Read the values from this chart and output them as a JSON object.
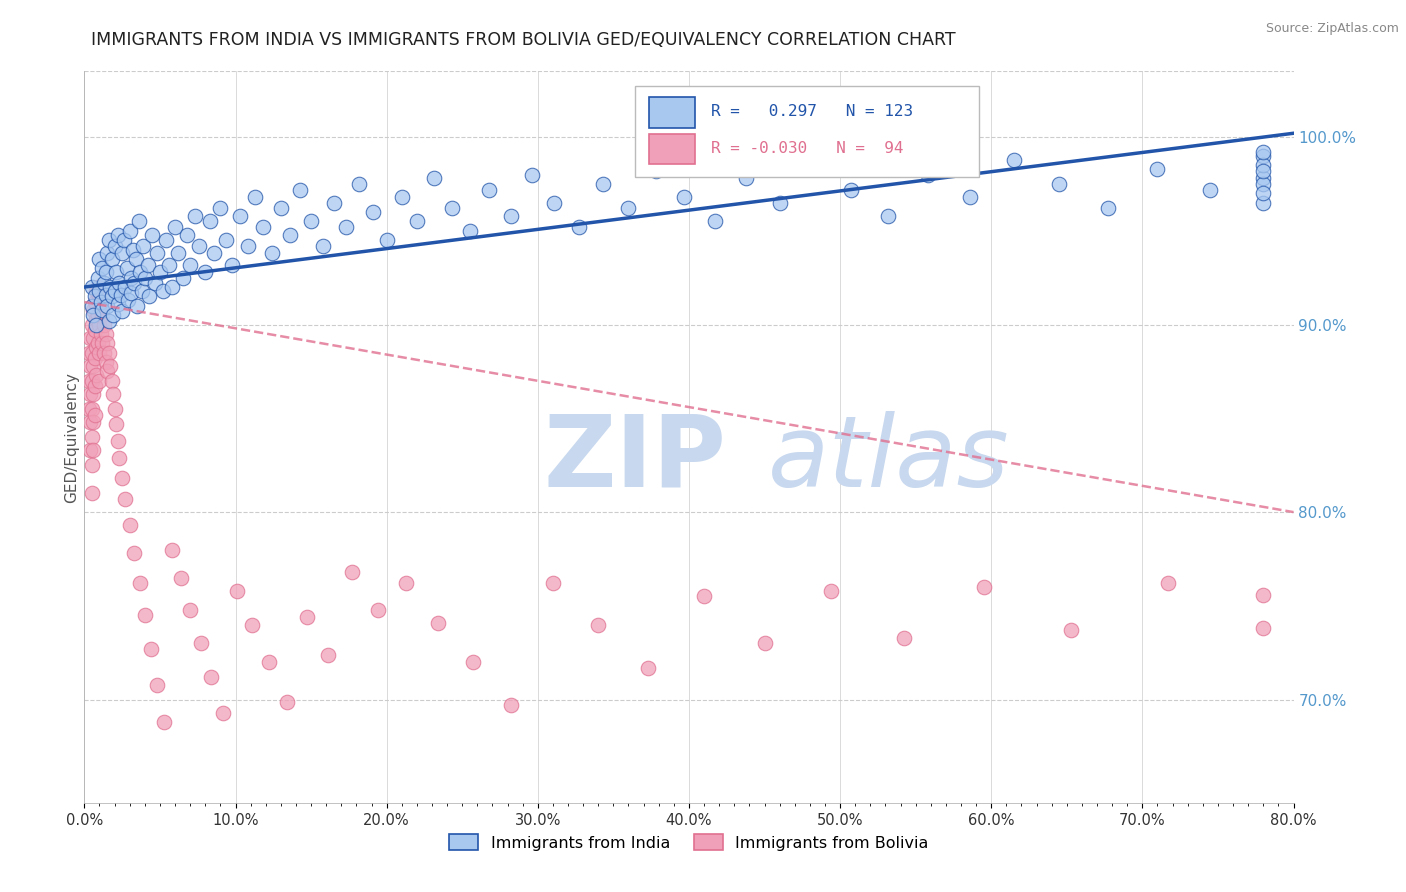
{
  "title": "IMMIGRANTS FROM INDIA VS IMMIGRANTS FROM BOLIVIA GED/EQUIVALENCY CORRELATION CHART",
  "source": "Source: ZipAtlas.com",
  "ylabel": "GED/Equivalency",
  "legend_label_india": "Immigrants from India",
  "legend_label_bolivia": "Immigrants from Bolivia",
  "R_india": 0.297,
  "N_india": 123,
  "R_bolivia": -0.03,
  "N_bolivia": 94,
  "xlim": [
    0.0,
    0.8
  ],
  "ylim": [
    0.645,
    1.035
  ],
  "xtick_labels": [
    "0.0%",
    "",
    "",
    "",
    "",
    "",
    "",
    "",
    "",
    "",
    "10.0%",
    "",
    "",
    "",
    "",
    "",
    "",
    "",
    "",
    "",
    "20.0%",
    "",
    "",
    "",
    "",
    "",
    "",
    "",
    "",
    "",
    "30.0%",
    "",
    "",
    "",
    "",
    "",
    "",
    "",
    "",
    "",
    "40.0%",
    "",
    "",
    "",
    "",
    "",
    "",
    "",
    "",
    "",
    "50.0%",
    "",
    "",
    "",
    "",
    "",
    "",
    "",
    "",
    "",
    "60.0%",
    "",
    "",
    "",
    "",
    "",
    "",
    "",
    "",
    "",
    "70.0%",
    "",
    "",
    "",
    "",
    "",
    "",
    "",
    "",
    "",
    "80.0%"
  ],
  "xtick_values": [
    0.0,
    0.01,
    0.02,
    0.03,
    0.04,
    0.05,
    0.06,
    0.07,
    0.08,
    0.09,
    0.1,
    0.11,
    0.12,
    0.13,
    0.14,
    0.15,
    0.16,
    0.17,
    0.18,
    0.19,
    0.2,
    0.21,
    0.22,
    0.23,
    0.24,
    0.25,
    0.26,
    0.27,
    0.28,
    0.29,
    0.3,
    0.31,
    0.32,
    0.33,
    0.34,
    0.35,
    0.36,
    0.37,
    0.38,
    0.39,
    0.4,
    0.41,
    0.42,
    0.43,
    0.44,
    0.45,
    0.46,
    0.47,
    0.48,
    0.49,
    0.5,
    0.51,
    0.52,
    0.53,
    0.54,
    0.55,
    0.56,
    0.57,
    0.58,
    0.59,
    0.6,
    0.61,
    0.62,
    0.63,
    0.64,
    0.65,
    0.66,
    0.67,
    0.68,
    0.69,
    0.7,
    0.71,
    0.72,
    0.73,
    0.74,
    0.75,
    0.76,
    0.77,
    0.78,
    0.79,
    0.8
  ],
  "ytick_labels": [
    "70.0%",
    "80.0%",
    "90.0%",
    "100.0%"
  ],
  "ytick_values": [
    0.7,
    0.8,
    0.9,
    1.0
  ],
  "color_india": "#a8c8f0",
  "color_bolivia": "#f0a0b8",
  "trendline_india_color": "#2255aa",
  "trendline_bolivia_color": "#e07090",
  "watermark_zip": "ZIP",
  "watermark_atlas": "atlas",
  "watermark_color": "#c8d8ee",
  "india_x": [
    0.005,
    0.005,
    0.006,
    0.007,
    0.008,
    0.009,
    0.01,
    0.01,
    0.011,
    0.012,
    0.012,
    0.013,
    0.014,
    0.014,
    0.015,
    0.015,
    0.016,
    0.016,
    0.017,
    0.018,
    0.018,
    0.019,
    0.02,
    0.02,
    0.021,
    0.022,
    0.022,
    0.023,
    0.024,
    0.025,
    0.025,
    0.026,
    0.027,
    0.028,
    0.029,
    0.03,
    0.031,
    0.031,
    0.032,
    0.033,
    0.034,
    0.035,
    0.036,
    0.037,
    0.038,
    0.039,
    0.04,
    0.042,
    0.043,
    0.045,
    0.047,
    0.048,
    0.05,
    0.052,
    0.054,
    0.056,
    0.058,
    0.06,
    0.062,
    0.065,
    0.068,
    0.07,
    0.073,
    0.076,
    0.08,
    0.083,
    0.086,
    0.09,
    0.094,
    0.098,
    0.103,
    0.108,
    0.113,
    0.118,
    0.124,
    0.13,
    0.136,
    0.143,
    0.15,
    0.158,
    0.165,
    0.173,
    0.182,
    0.191,
    0.2,
    0.21,
    0.22,
    0.231,
    0.243,
    0.255,
    0.268,
    0.282,
    0.296,
    0.311,
    0.327,
    0.343,
    0.36,
    0.378,
    0.397,
    0.417,
    0.438,
    0.46,
    0.483,
    0.507,
    0.532,
    0.558,
    0.586,
    0.615,
    0.645,
    0.677,
    0.71,
    0.745,
    0.78,
    0.78,
    0.78,
    0.78,
    0.78,
    0.78,
    0.78,
    0.78
  ],
  "india_y": [
    0.92,
    0.91,
    0.905,
    0.915,
    0.9,
    0.925,
    0.935,
    0.918,
    0.912,
    0.93,
    0.908,
    0.922,
    0.916,
    0.928,
    0.91,
    0.938,
    0.902,
    0.945,
    0.92,
    0.915,
    0.935,
    0.905,
    0.942,
    0.918,
    0.928,
    0.911,
    0.948,
    0.922,
    0.916,
    0.938,
    0.907,
    0.945,
    0.92,
    0.93,
    0.913,
    0.95,
    0.925,
    0.917,
    0.94,
    0.922,
    0.935,
    0.91,
    0.955,
    0.928,
    0.918,
    0.942,
    0.925,
    0.932,
    0.915,
    0.948,
    0.922,
    0.938,
    0.928,
    0.918,
    0.945,
    0.932,
    0.92,
    0.952,
    0.938,
    0.925,
    0.948,
    0.932,
    0.958,
    0.942,
    0.928,
    0.955,
    0.938,
    0.962,
    0.945,
    0.932,
    0.958,
    0.942,
    0.968,
    0.952,
    0.938,
    0.962,
    0.948,
    0.972,
    0.955,
    0.942,
    0.965,
    0.952,
    0.975,
    0.96,
    0.945,
    0.968,
    0.955,
    0.978,
    0.962,
    0.95,
    0.972,
    0.958,
    0.98,
    0.965,
    0.952,
    0.975,
    0.962,
    0.982,
    0.968,
    0.955,
    0.978,
    0.965,
    0.985,
    0.972,
    0.958,
    0.98,
    0.968,
    0.988,
    0.975,
    0.962,
    0.983,
    0.972,
    0.99,
    0.978,
    0.965,
    0.985,
    0.975,
    0.992,
    0.982,
    0.97
  ],
  "bolivia_x": [
    0.003,
    0.003,
    0.003,
    0.004,
    0.004,
    0.004,
    0.004,
    0.004,
    0.005,
    0.005,
    0.005,
    0.005,
    0.005,
    0.005,
    0.005,
    0.006,
    0.006,
    0.006,
    0.006,
    0.006,
    0.006,
    0.007,
    0.007,
    0.007,
    0.007,
    0.007,
    0.008,
    0.008,
    0.008,
    0.008,
    0.009,
    0.009,
    0.009,
    0.01,
    0.01,
    0.01,
    0.01,
    0.011,
    0.011,
    0.012,
    0.012,
    0.013,
    0.013,
    0.014,
    0.014,
    0.015,
    0.015,
    0.016,
    0.017,
    0.018,
    0.019,
    0.02,
    0.021,
    0.022,
    0.023,
    0.025,
    0.027,
    0.03,
    0.033,
    0.037,
    0.04,
    0.044,
    0.048,
    0.053,
    0.058,
    0.064,
    0.07,
    0.077,
    0.084,
    0.092,
    0.101,
    0.111,
    0.122,
    0.134,
    0.147,
    0.161,
    0.177,
    0.194,
    0.213,
    0.234,
    0.257,
    0.282,
    0.31,
    0.34,
    0.373,
    0.41,
    0.45,
    0.494,
    0.542,
    0.595,
    0.653,
    0.717,
    0.78,
    0.78
  ],
  "bolivia_y": [
    0.885,
    0.87,
    0.855,
    0.893,
    0.878,
    0.863,
    0.848,
    0.833,
    0.9,
    0.885,
    0.87,
    0.855,
    0.84,
    0.825,
    0.81,
    0.908,
    0.893,
    0.878,
    0.863,
    0.848,
    0.833,
    0.912,
    0.897,
    0.882,
    0.867,
    0.852,
    0.918,
    0.903,
    0.888,
    0.873,
    0.92,
    0.905,
    0.89,
    0.915,
    0.9,
    0.885,
    0.87,
    0.91,
    0.895,
    0.905,
    0.89,
    0.9,
    0.885,
    0.895,
    0.88,
    0.89,
    0.875,
    0.885,
    0.878,
    0.87,
    0.863,
    0.855,
    0.847,
    0.838,
    0.829,
    0.818,
    0.807,
    0.793,
    0.778,
    0.762,
    0.745,
    0.727,
    0.708,
    0.688,
    0.78,
    0.765,
    0.748,
    0.73,
    0.712,
    0.693,
    0.758,
    0.74,
    0.72,
    0.699,
    0.744,
    0.724,
    0.768,
    0.748,
    0.762,
    0.741,
    0.72,
    0.697,
    0.762,
    0.74,
    0.717,
    0.755,
    0.73,
    0.758,
    0.733,
    0.76,
    0.737,
    0.762,
    0.756,
    0.738
  ]
}
